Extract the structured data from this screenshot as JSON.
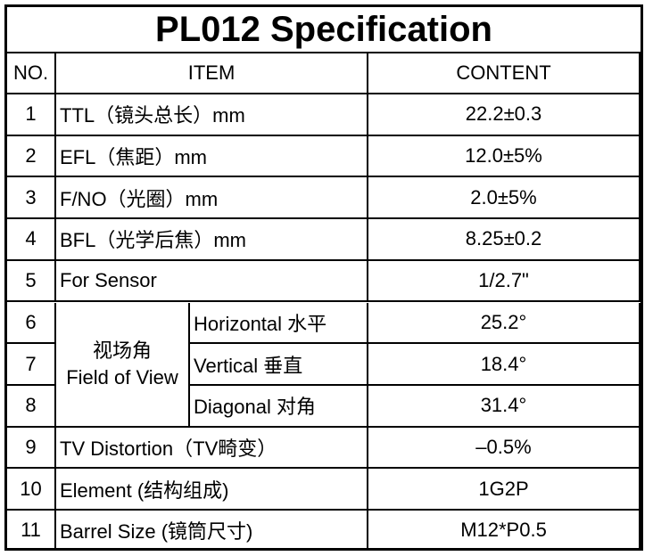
{
  "title": "PL012 Specification",
  "table": {
    "header": [
      "NO.",
      "ITEM",
      "CONTENT"
    ],
    "group_label": [
      "视场角",
      "Field of View"
    ],
    "rows": [
      {
        "no": "1",
        "item": "TTL（镜头总长）mm",
        "content": "22.2±0.3"
      },
      {
        "no": "2",
        "item": "EFL（焦距）mm",
        "content": "12.0±5%"
      },
      {
        "no": "3",
        "item": "F/NO（光圈）mm",
        "content": "2.0±5%"
      },
      {
        "no": "4",
        "item": "BFL（光学后焦）mm",
        "content": "8.25±0.2"
      },
      {
        "no": "5",
        "item": "For Sensor",
        "content": "1/2.7\""
      },
      {
        "no": "6",
        "item": "Horizontal 水平",
        "content": "25.2°"
      },
      {
        "no": "7",
        "item": "Vertical 垂直",
        "content": "18.4°"
      },
      {
        "no": "8",
        "item": "Diagonal 对角",
        "content": "31.4°"
      },
      {
        "no": "9",
        "item": "TV Distortion（TV畸变）",
        "content": "–0.5%"
      },
      {
        "no": "10",
        "item": "Element (结构组成)",
        "content": "1G2P"
      },
      {
        "no": "11",
        "item": "Barrel Size (镜筒尺寸)",
        "content": "M12*P0.5"
      }
    ]
  }
}
